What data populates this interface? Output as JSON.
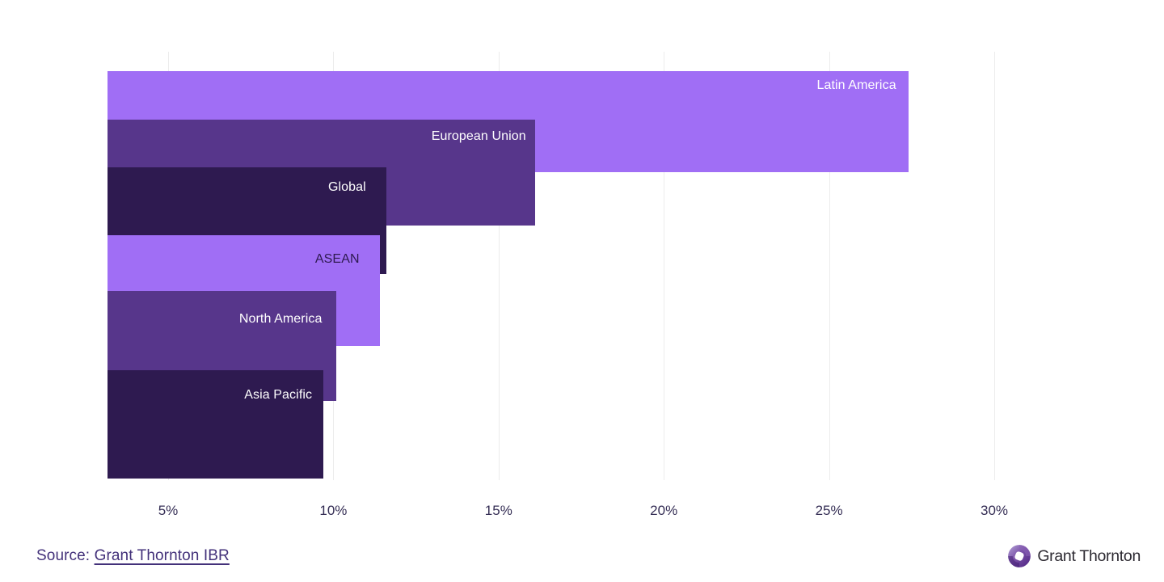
{
  "page": {
    "background": "#ffffff"
  },
  "chart_data": {
    "type": "bar",
    "orientation": "horizontal",
    "title": "",
    "xlabel": "",
    "ylabel": "",
    "categories": [
      "Latin America",
      "European Union",
      "Global",
      "ASEAN",
      "North America",
      "Asia Pacific"
    ],
    "values": [
      27.4,
      16.1,
      11.6,
      11.4,
      10.1,
      9.7
    ],
    "value_unit": "%",
    "x_ticks": [
      "5%",
      "10%",
      "15%",
      "20%",
      "25%",
      "30%"
    ],
    "x_tick_values": [
      5,
      10,
      15,
      20,
      25,
      30
    ],
    "xlim": [
      3.2,
      33
    ],
    "grid": "vertical-gridlines-only",
    "legend": "none",
    "bar_colors": [
      "#a06ef5",
      "#57368b",
      "#2e1a50",
      "#a06ef5",
      "#57368b",
      "#2e1a50"
    ],
    "bar_label_colors": [
      "#ffffff",
      "#ffffff",
      "#ffffff",
      "#2e1a50",
      "#ffffff",
      "#ffffff"
    ]
  },
  "axis": {
    "tick_text_color": "#352e55",
    "gridline_color": "#ececec"
  },
  "source": {
    "prefix": "Source: ",
    "link_text": "Grant Thornton IBR",
    "text_color": "#43317a"
  },
  "logo": {
    "wordmark": "Grant Thornton",
    "icon": "grant-thornton-orb-icon",
    "orb_purple": "#6a3fa0",
    "text_color": "#2d2a32"
  }
}
